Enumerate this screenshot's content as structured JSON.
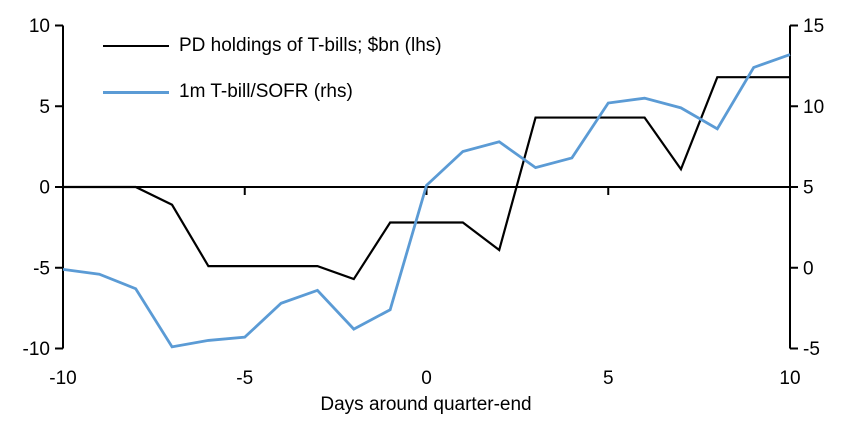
{
  "chart_data": {
    "type": "line",
    "title": "",
    "xlabel": "Days around quarter-end",
    "grid": false,
    "legend_position": "top-left-inside",
    "x": [
      -10,
      -9,
      -8,
      -7,
      -6,
      -5,
      -4,
      -3,
      -2,
      -1,
      0,
      1,
      2,
      3,
      4,
      5,
      6,
      7,
      8,
      9,
      10
    ],
    "series": [
      {
        "name": "PD holdings of T-bills; $bn (lhs)",
        "axis": "lhs",
        "color": "#000000",
        "values": [
          0,
          0,
          0,
          -1.1,
          -4.9,
          -4.9,
          -4.9,
          -4.9,
          -5.7,
          -2.2,
          -2.2,
          -2.2,
          -3.9,
          4.3,
          4.3,
          4.3,
          4.3,
          1.1,
          6.8,
          6.8,
          6.8
        ]
      },
      {
        "name": "1m T-bill/SOFR (rhs)",
        "axis": "rhs",
        "color": "#5b9bd5",
        "values": [
          -0.1,
          -0.4,
          -1.3,
          -4.9,
          -4.5,
          -4.3,
          -2.2,
          -1.4,
          -3.8,
          -2.6,
          5.1,
          7.2,
          7.8,
          6.2,
          6.8,
          10.2,
          10.5,
          9.9,
          8.6,
          12.4,
          13.2
        ]
      }
    ],
    "axes": {
      "lhs": {
        "range": [
          -10,
          10
        ],
        "ticks": [
          10,
          5,
          0,
          -5,
          -10
        ]
      },
      "rhs": {
        "range": [
          -5,
          15
        ],
        "ticks": [
          15,
          10,
          5,
          0,
          -5
        ]
      },
      "x": {
        "range": [
          -10,
          10
        ],
        "ticks": [
          -10,
          -5,
          0,
          5,
          10
        ]
      }
    },
    "axis_color": "#000000",
    "zero_line": true
  }
}
